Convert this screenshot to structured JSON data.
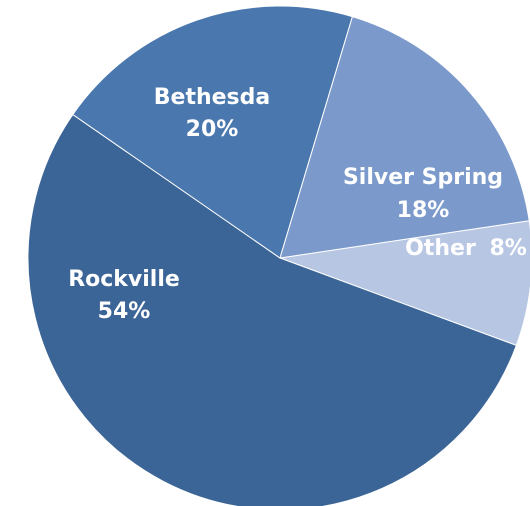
{
  "chart_data": {
    "type": "pie",
    "slices": [
      {
        "label": "Rockville",
        "pct_label": "54%",
        "value": 54,
        "color": "#3c6597"
      },
      {
        "label": "Bethesda",
        "pct_label": "20%",
        "value": 20,
        "color": "#4a78ae"
      },
      {
        "label": "Silver Spring",
        "pct_label": "18%",
        "value": 18,
        "color": "#7b9acb"
      },
      {
        "label": "Other",
        "pct_label": "8%",
        "value": 8,
        "color": "#b7c7e3"
      }
    ],
    "label_color": "#ffffff",
    "background": "#ffffff"
  }
}
